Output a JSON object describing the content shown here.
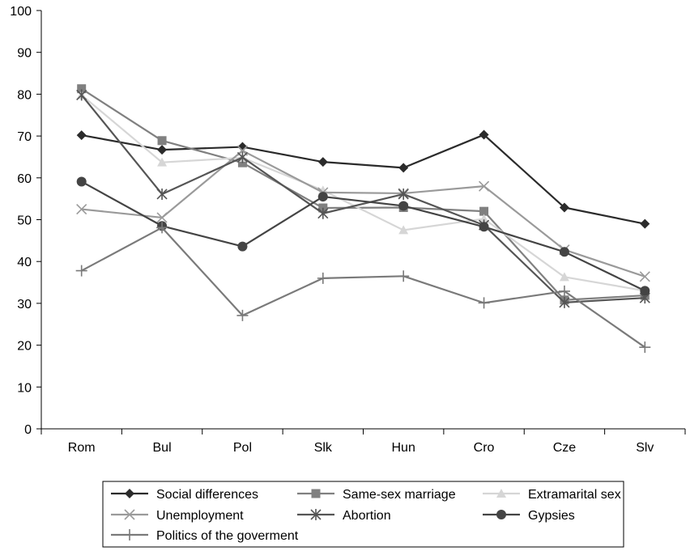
{
  "chart_data": {
    "type": "line",
    "categories": [
      "Rom",
      "Bul",
      "Pol",
      "Slk",
      "Hun",
      "Cro",
      "Cze",
      "Slv"
    ],
    "ylim": [
      0,
      100
    ],
    "yticks": [
      0,
      10,
      20,
      30,
      40,
      50,
      60,
      70,
      80,
      90,
      100
    ],
    "grid": false,
    "legend_position": "bottom",
    "series": [
      {
        "name": "Social differences",
        "marker": "diamond",
        "color": "#2b2b2b",
        "values": [
          70.2,
          66.7,
          67.4,
          63.8,
          62.4,
          70.3,
          52.9,
          49.0
        ]
      },
      {
        "name": "Same-sex marriage",
        "marker": "square",
        "color": "#808080",
        "values": [
          81.3,
          68.9,
          63.6,
          52.8,
          52.9,
          52.0,
          30.8,
          31.9
        ]
      },
      {
        "name": "Extramarital sex",
        "marker": "triangle",
        "color": "#d6d6d6",
        "values": [
          79.8,
          63.7,
          64.8,
          57.0,
          47.5,
          50.2,
          36.3,
          33.0
        ]
      },
      {
        "name": "Unemployment",
        "marker": "x",
        "color": "#9a9a9a",
        "values": [
          52.5,
          50.5,
          66.5,
          56.5,
          56.3,
          58.0,
          42.8,
          36.4
        ]
      },
      {
        "name": "Abortion",
        "marker": "asterisk",
        "color": "#555555",
        "values": [
          79.8,
          56.1,
          64.9,
          51.5,
          56.1,
          48.7,
          30.2,
          31.3
        ]
      },
      {
        "name": "Gypsies",
        "marker": "circle",
        "color": "#444444",
        "values": [
          59.1,
          48.5,
          43.6,
          55.5,
          53.3,
          48.3,
          42.3,
          33.0
        ]
      },
      {
        "name": "Politics of the goverment",
        "marker": "plus",
        "color": "#7a7a7a",
        "values": [
          37.8,
          48.1,
          27.1,
          36.0,
          36.5,
          30.1,
          32.9,
          19.5
        ]
      }
    ]
  }
}
